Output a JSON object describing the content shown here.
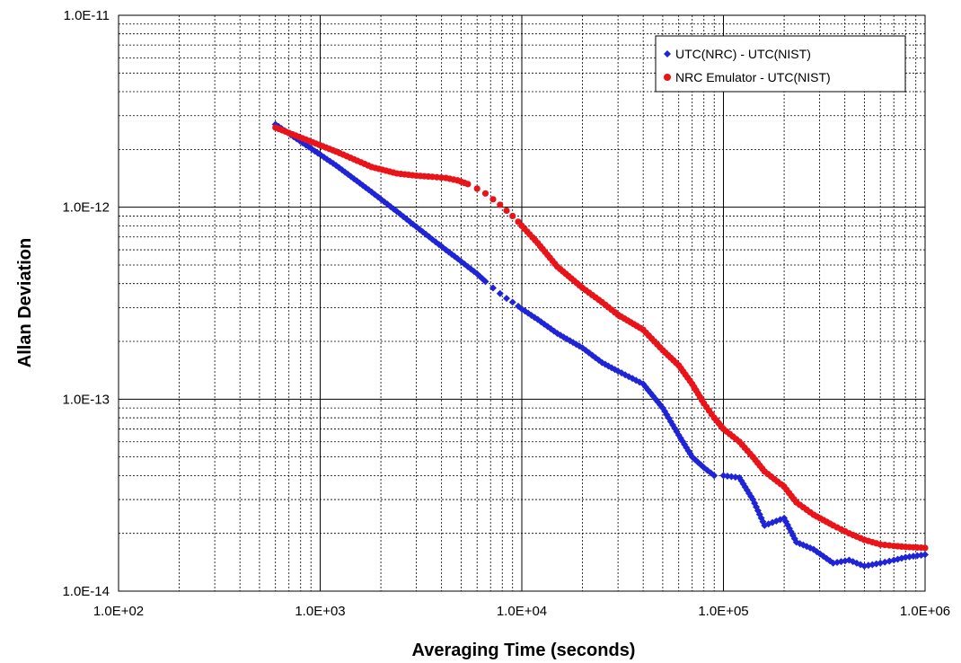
{
  "chart_data": {
    "type": "scatter",
    "xlabel": "Averaging Time (seconds)",
    "ylabel": "Allan Deviation",
    "x_scale": "log",
    "y_scale": "log",
    "xlim": [
      100,
      1000000
    ],
    "ylim": [
      1e-14,
      1e-11
    ],
    "x_tick_labels": [
      "1.0E+02",
      "1.0E+03",
      "1.0E+04",
      "1.0E+05",
      "1.0E+06"
    ],
    "y_tick_labels": [
      "1.0E-11",
      "1.0E-12",
      "1.0E-13",
      "1.0E-14"
    ],
    "grid": true,
    "legend_position": "top-right",
    "series": [
      {
        "name": "UTC(NRC) - UTC(NIST)",
        "color": "#1f24d6",
        "marker": "diamond",
        "x": [
          600,
          1200,
          1800,
          2400,
          3000,
          3600,
          4200,
          4800,
          5400,
          6000,
          6600,
          7200,
          7800,
          8400,
          9000,
          9600,
          10000,
          12000,
          15000,
          20000,
          25000,
          30000,
          40000,
          50000,
          60000,
          70000,
          80000,
          90000,
          100000,
          120000,
          140000,
          160000,
          200000,
          230000,
          280000,
          350000,
          420000,
          500000,
          600000,
          700000,
          800000,
          1000000
        ],
        "y": [
          2.7e-12,
          1.65e-12,
          1.2e-12,
          9.5e-13,
          7.9e-13,
          6.8e-13,
          6e-13,
          5.4e-13,
          4.9e-13,
          4.5e-13,
          4.1e-13,
          3.8e-13,
          3.55e-13,
          3.35e-13,
          3.2e-13,
          3.05e-13,
          2.95e-13,
          2.6e-13,
          2.2e-13,
          1.85e-13,
          1.55e-13,
          1.4e-13,
          1.2e-13,
          9e-14,
          6.5e-14,
          5e-14,
          4.4e-14,
          4e-14,
          4e-14,
          3.9e-14,
          3e-14,
          2.2e-14,
          2.4e-14,
          1.8e-14,
          1.65e-14,
          1.4e-14,
          1.45e-14,
          1.35e-14,
          1.4e-14,
          1.45e-14,
          1.5e-14,
          1.55e-14
        ]
      },
      {
        "name": "NRC Emulator - UTC(NIST)",
        "color": "#e8141a",
        "marker": "circle",
        "x": [
          600,
          1200,
          1800,
          2400,
          3000,
          3600,
          4200,
          4800,
          5400,
          6000,
          6600,
          7200,
          7800,
          8400,
          9000,
          9600,
          10000,
          12000,
          15000,
          20000,
          25000,
          30000,
          40000,
          50000,
          60000,
          70000,
          80000,
          90000,
          100000,
          120000,
          140000,
          160000,
          200000,
          230000,
          280000,
          350000,
          420000,
          500000,
          600000,
          700000,
          800000,
          1000000
        ],
        "y": [
          2.6e-12,
          1.95e-12,
          1.62e-12,
          1.5e-12,
          1.46e-12,
          1.44e-12,
          1.42e-12,
          1.38e-12,
          1.32e-12,
          1.25e-12,
          1.18e-12,
          1.1e-12,
          1.03e-12,
          9.6e-13,
          9e-13,
          8.4e-13,
          8e-13,
          6.5e-13,
          4.9e-13,
          3.8e-13,
          3.2e-13,
          2.75e-13,
          2.3e-13,
          1.8e-13,
          1.5e-13,
          1.2e-13,
          9.5e-14,
          8e-14,
          7e-14,
          6e-14,
          5e-14,
          4.2e-14,
          3.5e-14,
          2.9e-14,
          2.5e-14,
          2.2e-14,
          2e-14,
          1.85e-14,
          1.75e-14,
          1.72e-14,
          1.7e-14,
          1.68e-14
        ]
      }
    ]
  }
}
